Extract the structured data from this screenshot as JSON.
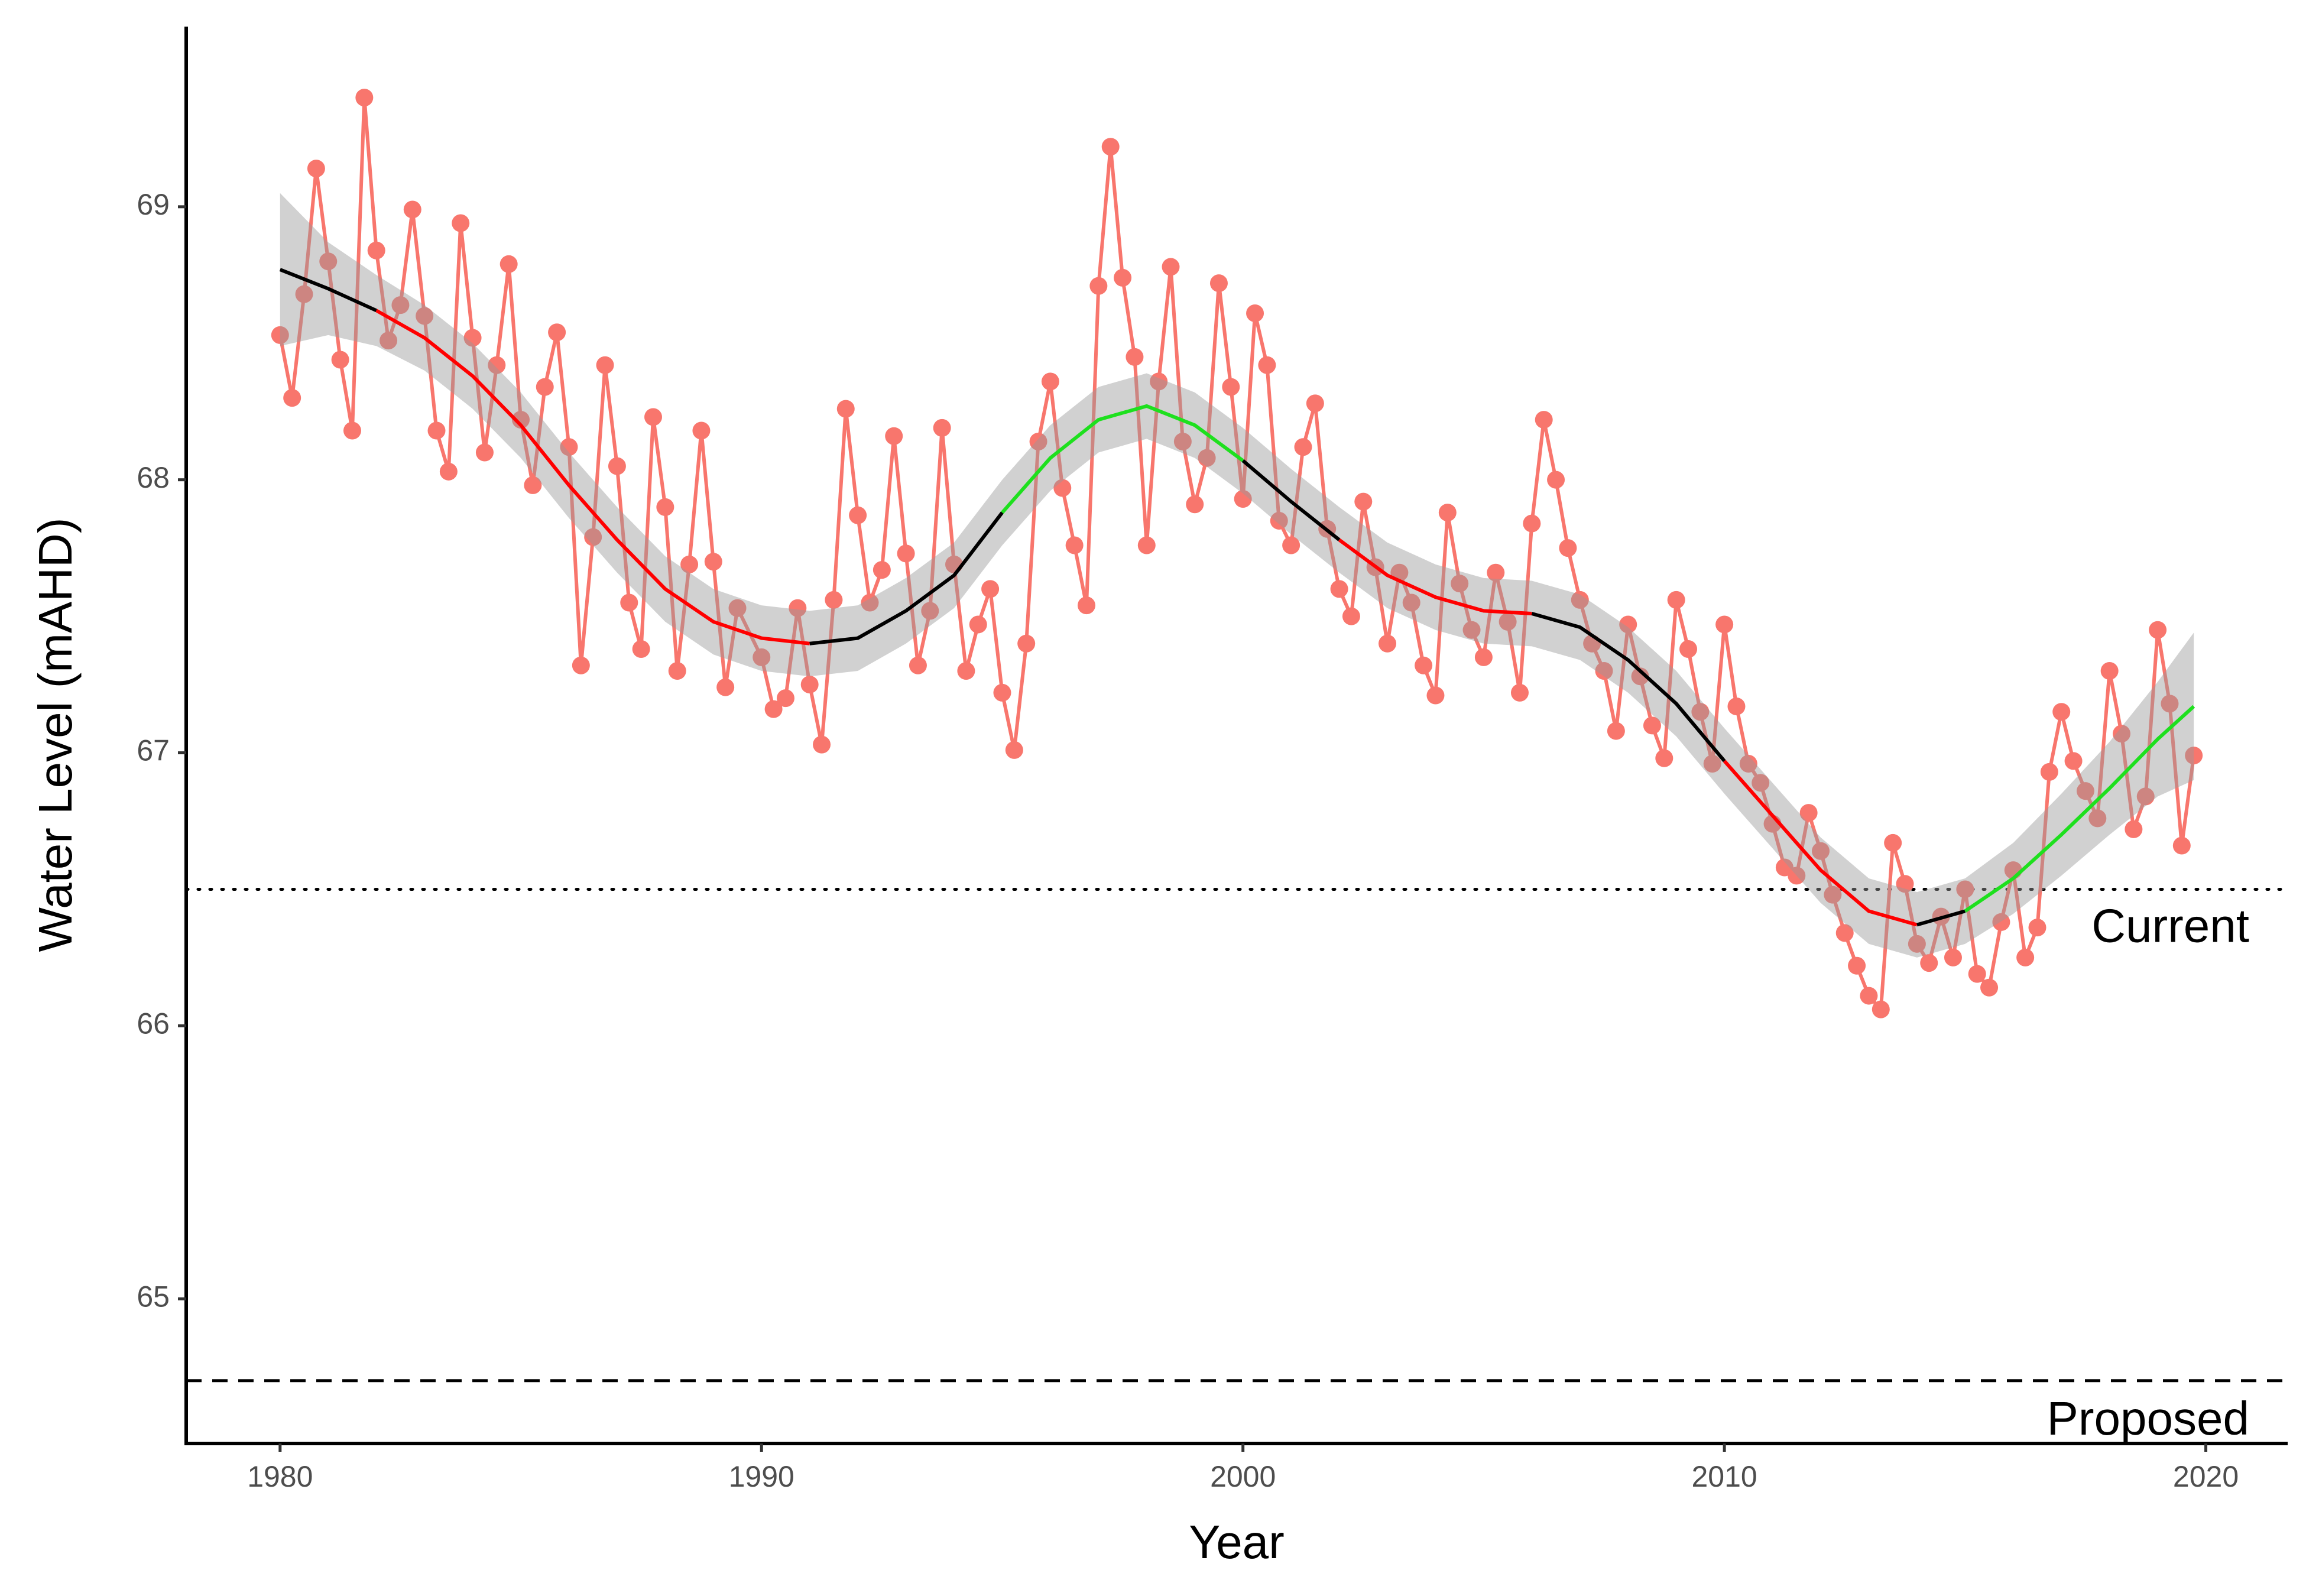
{
  "chart_data": {
    "type": "line",
    "x_label": "Year",
    "y_label": "Water Level (mAHD)",
    "xlim": [
      1978.05,
      2021.7
    ],
    "ylim": [
      64.47,
      69.66
    ],
    "xticks": [
      1980,
      1990,
      2000,
      2010,
      2020
    ],
    "yticks": [
      65,
      66,
      67,
      68,
      69
    ],
    "series": [
      {
        "color": "#F8766D",
        "x": [
          1980,
          1980.25,
          1980.5,
          1980.75,
          1981,
          1981.25,
          1981.5,
          1981.75,
          1982,
          1982.25,
          1982.5,
          1982.75,
          1983,
          1983.25,
          1983.5,
          1983.75,
          1984,
          1984.25,
          1984.5,
          1984.75,
          1985,
          1985.25,
          1985.5,
          1985.75,
          1986,
          1986.25,
          1986.5,
          1986.75,
          1987,
          1987.25,
          1987.5,
          1987.75,
          1988,
          1988.25,
          1988.5,
          1988.75,
          1989,
          1989.25,
          1989.5,
          1990,
          1990.25,
          1990.5,
          1990.75,
          1991,
          1991.25,
          1991.5,
          1991.75,
          1992,
          1992.25,
          1992.5,
          1992.75,
          1993,
          1993.25,
          1993.5,
          1993.75,
          1994,
          1994.25,
          1994.5,
          1994.75,
          1995,
          1995.25,
          1995.5,
          1995.75,
          1996,
          1996.25,
          1996.5,
          1996.75,
          1997,
          1997.25,
          1997.5,
          1997.75,
          1998,
          1998.25,
          1998.5,
          1998.75,
          1999,
          1999.25,
          1999.5,
          1999.75,
          2000,
          2000.25,
          2000.5,
          2000.75,
          2001,
          2001.25,
          2001.5,
          2001.75,
          2002,
          2002.25,
          2002.5,
          2002.75,
          2003,
          2003.25,
          2003.5,
          2003.75,
          2004,
          2004.25,
          2004.5,
          2004.75,
          2005,
          2005.25,
          2005.5,
          2005.75,
          2006,
          2006.25,
          2006.5,
          2006.75,
          2007,
          2007.25,
          2007.5,
          2007.75,
          2008,
          2008.25,
          2008.5,
          2008.75,
          2009,
          2009.25,
          2009.5,
          2009.75,
          2010,
          2010.25,
          2010.5,
          2010.75,
          2011,
          2011.25,
          2011.5,
          2011.75,
          2012,
          2012.25,
          2012.5,
          2012.75,
          2013,
          2013.25,
          2013.5,
          2013.75,
          2014,
          2014.25,
          2014.5,
          2014.75,
          2015,
          2015.25,
          2015.5,
          2015.75,
          2016,
          2016.25,
          2016.5,
          2016.75,
          2017,
          2017.25,
          2017.5,
          2017.75,
          2018,
          2018.25,
          2018.5,
          2018.75,
          2019,
          2019.25,
          2019.5,
          2019.75
        ],
        "values": [
          68.53,
          68.3,
          68.68,
          69.14,
          68.8,
          68.44,
          68.18,
          69.4,
          68.84,
          68.51,
          68.64,
          68.99,
          68.6,
          68.18,
          68.03,
          68.94,
          68.52,
          68.1,
          68.42,
          68.79,
          68.22,
          67.98,
          68.34,
          68.54,
          68.12,
          67.32,
          67.79,
          68.42,
          68.05,
          67.55,
          67.38,
          68.23,
          67.9,
          67.3,
          67.69,
          68.18,
          67.7,
          67.24,
          67.53,
          67.35,
          67.16,
          67.2,
          67.53,
          67.25,
          67.03,
          67.56,
          68.26,
          67.87,
          67.55,
          67.67,
          68.16,
          67.73,
          67.32,
          67.52,
          68.19,
          67.69,
          67.3,
          67.47,
          67.6,
          67.22,
          67.01,
          67.4,
          68.14,
          68.36,
          67.97,
          67.76,
          67.54,
          68.71,
          69.22,
          68.74,
          68.45,
          67.76,
          68.36,
          68.78,
          68.14,
          67.91,
          68.08,
          68.72,
          68.34,
          67.93,
          68.61,
          68.42,
          67.85,
          67.76,
          68.12,
          68.28,
          67.82,
          67.6,
          67.5,
          67.92,
          67.68,
          67.4,
          67.66,
          67.55,
          67.32,
          67.21,
          67.88,
          67.62,
          67.45,
          67.35,
          67.66,
          67.48,
          67.22,
          67.84,
          68.22,
          68.0,
          67.75,
          67.56,
          67.4,
          67.3,
          67.08,
          67.47,
          67.28,
          67.1,
          66.98,
          67.56,
          67.38,
          67.15,
          66.96,
          67.47,
          67.17,
          66.96,
          66.89,
          66.74,
          66.58,
          66.55,
          66.78,
          66.64,
          66.48,
          66.34,
          66.22,
          66.11,
          66.06,
          66.67,
          66.52,
          66.3,
          66.23,
          66.4,
          66.25,
          66.5,
          66.19,
          66.14,
          66.38,
          66.57,
          66.25,
          66.36,
          66.93,
          67.15,
          66.97,
          66.86,
          66.76,
          67.3,
          67.07,
          66.72,
          66.84,
          67.45,
          67.18,
          66.66,
          66.99
        ]
      }
    ],
    "band": {
      "color": "#999999",
      "x": [
        1980,
        1981,
        1982,
        1983,
        1984,
        1985,
        1986,
        1987,
        1988,
        1989,
        1990,
        1991,
        1992,
        1993,
        1994,
        1995,
        1996,
        1997,
        1998,
        1999,
        2000,
        2001,
        2002,
        2003,
        2004,
        2005,
        2006,
        2007,
        2008,
        2009,
        2010,
        2011,
        2012,
        2013,
        2014,
        2015,
        2016,
        2017,
        2018,
        2019,
        2019.75
      ],
      "lower": [
        68.49,
        68.53,
        68.49,
        68.4,
        68.26,
        68.08,
        67.86,
        67.66,
        67.48,
        67.36,
        67.3,
        67.28,
        67.3,
        67.4,
        67.53,
        67.76,
        67.96,
        68.1,
        68.15,
        68.08,
        67.95,
        67.8,
        67.66,
        67.53,
        67.45,
        67.4,
        67.39,
        67.34,
        67.22,
        67.06,
        66.85,
        66.65,
        66.45,
        66.3,
        66.25,
        66.3,
        66.41,
        66.55,
        66.7,
        66.84,
        66.9
      ],
      "upper": [
        69.05,
        68.87,
        68.75,
        68.64,
        68.5,
        68.32,
        68.1,
        67.9,
        67.72,
        67.6,
        67.54,
        67.52,
        67.54,
        67.64,
        67.77,
        68.0,
        68.2,
        68.34,
        68.39,
        68.32,
        68.19,
        68.04,
        67.9,
        67.77,
        67.69,
        67.64,
        67.63,
        67.58,
        67.46,
        67.3,
        67.09,
        66.89,
        66.69,
        66.54,
        66.49,
        66.54,
        66.67,
        66.85,
        67.04,
        67.26,
        67.44
      ]
    },
    "trend": [
      {
        "color": "#000000",
        "x": [
          1980,
          1981,
          1982
        ],
        "values": [
          68.77,
          68.7,
          68.62
        ]
      },
      {
        "color": "#FF0000",
        "x": [
          1982,
          1983,
          1984,
          1985,
          1986,
          1987,
          1988,
          1989,
          1990,
          1991
        ],
        "values": [
          68.62,
          68.52,
          68.38,
          68.2,
          67.98,
          67.78,
          67.6,
          67.48,
          67.42,
          67.4
        ]
      },
      {
        "color": "#000000",
        "x": [
          1991,
          1992,
          1993,
          1994,
          1995
        ],
        "values": [
          67.4,
          67.42,
          67.52,
          67.65,
          67.88
        ]
      },
      {
        "color": "#1EE01E",
        "x": [
          1995,
          1996,
          1997,
          1998,
          1999,
          2000
        ],
        "values": [
          67.88,
          68.08,
          68.22,
          68.27,
          68.2,
          68.07
        ]
      },
      {
        "color": "#000000",
        "x": [
          2000,
          2001,
          2002
        ],
        "values": [
          68.07,
          67.92,
          67.78
        ]
      },
      {
        "color": "#FF0000",
        "x": [
          2002,
          2003,
          2004,
          2005,
          2006
        ],
        "values": [
          67.78,
          67.65,
          67.57,
          67.52,
          67.51
        ]
      },
      {
        "color": "#000000",
        "x": [
          2006,
          2007,
          2008,
          2009,
          2010
        ],
        "values": [
          67.51,
          67.46,
          67.34,
          67.18,
          66.97
        ]
      },
      {
        "color": "#FF0000",
        "x": [
          2010,
          2011,
          2012,
          2013,
          2014
        ],
        "values": [
          66.97,
          66.77,
          66.57,
          66.42,
          66.37
        ]
      },
      {
        "color": "#000000",
        "x": [
          2014,
          2015
        ],
        "values": [
          66.37,
          66.42
        ]
      },
      {
        "color": "#1EE01E",
        "x": [
          2015,
          2016,
          2017,
          2018,
          2019,
          2019.75
        ],
        "values": [
          66.42,
          66.54,
          66.7,
          66.87,
          67.05,
          67.17
        ]
      }
    ],
    "hlines": [
      {
        "value": 66.5,
        "label": "Current",
        "style": "dotted"
      },
      {
        "value": 64.7,
        "label": "Proposed",
        "style": "dashed"
      }
    ]
  }
}
